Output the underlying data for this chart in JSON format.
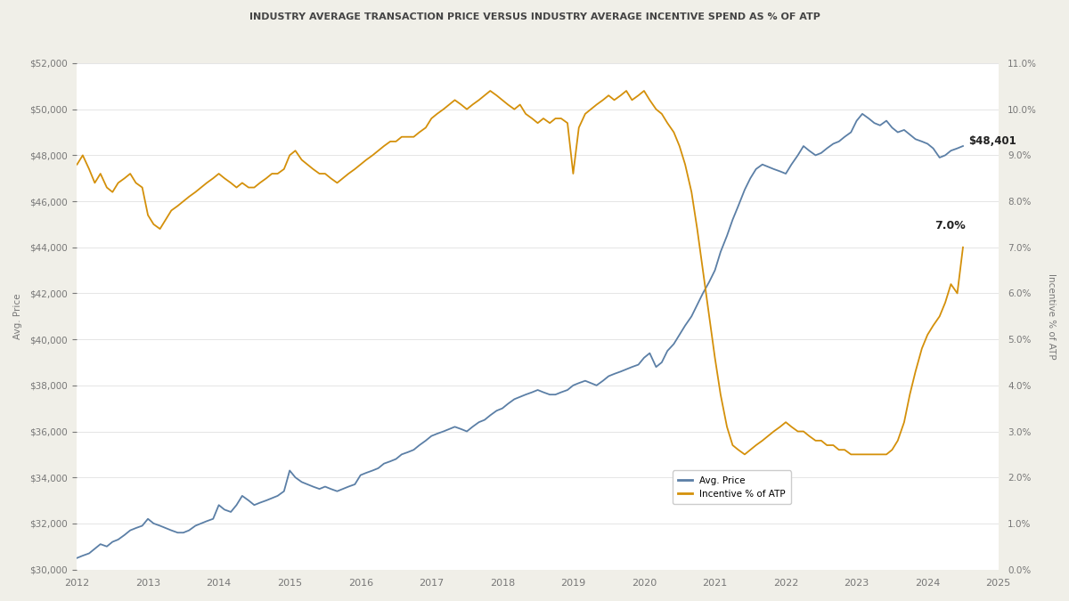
{
  "title": "INDUSTRY AVERAGE TRANSACTION PRICE VERSUS INDUSTRY AVERAGE INCENTIVE SPEND AS % OF ATP",
  "title_fontsize": 8.0,
  "ylabel_left": "Avg. Price",
  "ylabel_right": "Incentive % of ATP",
  "background_color": "#f0efe8",
  "plot_bg_color": "#ffffff",
  "price_color": "#5b7fa6",
  "incentive_color": "#d4900a",
  "price_label": "Avg. Price",
  "incentive_label": "Incentive % of ATP",
  "annotation_price": "$48,401",
  "annotation_incentive": "7.0%",
  "ylim_left": [
    30000,
    52000
  ],
  "ylim_right": [
    0.0,
    0.11
  ],
  "xlim": [
    2012.0,
    2025.0
  ],
  "price_data": [
    [
      2012.0,
      30500
    ],
    [
      2012.08,
      30600
    ],
    [
      2012.17,
      30700
    ],
    [
      2012.25,
      30900
    ],
    [
      2012.33,
      31100
    ],
    [
      2012.42,
      31000
    ],
    [
      2012.5,
      31200
    ],
    [
      2012.58,
      31300
    ],
    [
      2012.67,
      31500
    ],
    [
      2012.75,
      31700
    ],
    [
      2012.83,
      31800
    ],
    [
      2012.92,
      31900
    ],
    [
      2013.0,
      32200
    ],
    [
      2013.08,
      32000
    ],
    [
      2013.17,
      31900
    ],
    [
      2013.25,
      31800
    ],
    [
      2013.33,
      31700
    ],
    [
      2013.42,
      31600
    ],
    [
      2013.5,
      31600
    ],
    [
      2013.58,
      31700
    ],
    [
      2013.67,
      31900
    ],
    [
      2013.75,
      32000
    ],
    [
      2013.83,
      32100
    ],
    [
      2013.92,
      32200
    ],
    [
      2014.0,
      32800
    ],
    [
      2014.08,
      32600
    ],
    [
      2014.17,
      32500
    ],
    [
      2014.25,
      32800
    ],
    [
      2014.33,
      33200
    ],
    [
      2014.42,
      33000
    ],
    [
      2014.5,
      32800
    ],
    [
      2014.58,
      32900
    ],
    [
      2014.67,
      33000
    ],
    [
      2014.75,
      33100
    ],
    [
      2014.83,
      33200
    ],
    [
      2014.92,
      33400
    ],
    [
      2015.0,
      34300
    ],
    [
      2015.08,
      34000
    ],
    [
      2015.17,
      33800
    ],
    [
      2015.25,
      33700
    ],
    [
      2015.33,
      33600
    ],
    [
      2015.42,
      33500
    ],
    [
      2015.5,
      33600
    ],
    [
      2015.58,
      33500
    ],
    [
      2015.67,
      33400
    ],
    [
      2015.75,
      33500
    ],
    [
      2015.83,
      33600
    ],
    [
      2015.92,
      33700
    ],
    [
      2016.0,
      34100
    ],
    [
      2016.08,
      34200
    ],
    [
      2016.17,
      34300
    ],
    [
      2016.25,
      34400
    ],
    [
      2016.33,
      34600
    ],
    [
      2016.42,
      34700
    ],
    [
      2016.5,
      34800
    ],
    [
      2016.58,
      35000
    ],
    [
      2016.67,
      35100
    ],
    [
      2016.75,
      35200
    ],
    [
      2016.83,
      35400
    ],
    [
      2016.92,
      35600
    ],
    [
      2017.0,
      35800
    ],
    [
      2017.08,
      35900
    ],
    [
      2017.17,
      36000
    ],
    [
      2017.25,
      36100
    ],
    [
      2017.33,
      36200
    ],
    [
      2017.42,
      36100
    ],
    [
      2017.5,
      36000
    ],
    [
      2017.58,
      36200
    ],
    [
      2017.67,
      36400
    ],
    [
      2017.75,
      36500
    ],
    [
      2017.83,
      36700
    ],
    [
      2017.92,
      36900
    ],
    [
      2018.0,
      37000
    ],
    [
      2018.08,
      37200
    ],
    [
      2018.17,
      37400
    ],
    [
      2018.25,
      37500
    ],
    [
      2018.33,
      37600
    ],
    [
      2018.42,
      37700
    ],
    [
      2018.5,
      37800
    ],
    [
      2018.58,
      37700
    ],
    [
      2018.67,
      37600
    ],
    [
      2018.75,
      37600
    ],
    [
      2018.83,
      37700
    ],
    [
      2018.92,
      37800
    ],
    [
      2019.0,
      38000
    ],
    [
      2019.08,
      38100
    ],
    [
      2019.17,
      38200
    ],
    [
      2019.25,
      38100
    ],
    [
      2019.33,
      38000
    ],
    [
      2019.42,
      38200
    ],
    [
      2019.5,
      38400
    ],
    [
      2019.58,
      38500
    ],
    [
      2019.67,
      38600
    ],
    [
      2019.75,
      38700
    ],
    [
      2019.83,
      38800
    ],
    [
      2019.92,
      38900
    ],
    [
      2020.0,
      39200
    ],
    [
      2020.08,
      39400
    ],
    [
      2020.17,
      38800
    ],
    [
      2020.25,
      39000
    ],
    [
      2020.33,
      39500
    ],
    [
      2020.42,
      39800
    ],
    [
      2020.5,
      40200
    ],
    [
      2020.58,
      40600
    ],
    [
      2020.67,
      41000
    ],
    [
      2020.75,
      41500
    ],
    [
      2020.83,
      42000
    ],
    [
      2020.92,
      42500
    ],
    [
      2021.0,
      43000
    ],
    [
      2021.08,
      43800
    ],
    [
      2021.17,
      44500
    ],
    [
      2021.25,
      45200
    ],
    [
      2021.33,
      45800
    ],
    [
      2021.42,
      46500
    ],
    [
      2021.5,
      47000
    ],
    [
      2021.58,
      47400
    ],
    [
      2021.67,
      47600
    ],
    [
      2021.75,
      47500
    ],
    [
      2021.83,
      47400
    ],
    [
      2021.92,
      47300
    ],
    [
      2022.0,
      47200
    ],
    [
      2022.08,
      47600
    ],
    [
      2022.17,
      48000
    ],
    [
      2022.25,
      48400
    ],
    [
      2022.33,
      48200
    ],
    [
      2022.42,
      48000
    ],
    [
      2022.5,
      48100
    ],
    [
      2022.58,
      48300
    ],
    [
      2022.67,
      48500
    ],
    [
      2022.75,
      48600
    ],
    [
      2022.83,
      48800
    ],
    [
      2022.92,
      49000
    ],
    [
      2023.0,
      49500
    ],
    [
      2023.08,
      49800
    ],
    [
      2023.17,
      49600
    ],
    [
      2023.25,
      49400
    ],
    [
      2023.33,
      49300
    ],
    [
      2023.42,
      49500
    ],
    [
      2023.5,
      49200
    ],
    [
      2023.58,
      49000
    ],
    [
      2023.67,
      49100
    ],
    [
      2023.75,
      48900
    ],
    [
      2023.83,
      48700
    ],
    [
      2023.92,
      48600
    ],
    [
      2024.0,
      48500
    ],
    [
      2024.08,
      48300
    ],
    [
      2024.17,
      47900
    ],
    [
      2024.25,
      48000
    ],
    [
      2024.33,
      48200
    ],
    [
      2024.42,
      48300
    ],
    [
      2024.5,
      48401
    ]
  ],
  "incentive_data": [
    [
      2012.0,
      0.088
    ],
    [
      2012.08,
      0.09
    ],
    [
      2012.17,
      0.087
    ],
    [
      2012.25,
      0.084
    ],
    [
      2012.33,
      0.086
    ],
    [
      2012.42,
      0.083
    ],
    [
      2012.5,
      0.082
    ],
    [
      2012.58,
      0.084
    ],
    [
      2012.67,
      0.085
    ],
    [
      2012.75,
      0.086
    ],
    [
      2012.83,
      0.084
    ],
    [
      2012.92,
      0.083
    ],
    [
      2013.0,
      0.077
    ],
    [
      2013.08,
      0.075
    ],
    [
      2013.17,
      0.074
    ],
    [
      2013.25,
      0.076
    ],
    [
      2013.33,
      0.078
    ],
    [
      2013.42,
      0.079
    ],
    [
      2013.5,
      0.08
    ],
    [
      2013.58,
      0.081
    ],
    [
      2013.67,
      0.082
    ],
    [
      2013.75,
      0.083
    ],
    [
      2013.83,
      0.084
    ],
    [
      2013.92,
      0.085
    ],
    [
      2014.0,
      0.086
    ],
    [
      2014.08,
      0.085
    ],
    [
      2014.17,
      0.084
    ],
    [
      2014.25,
      0.083
    ],
    [
      2014.33,
      0.084
    ],
    [
      2014.42,
      0.083
    ],
    [
      2014.5,
      0.083
    ],
    [
      2014.58,
      0.084
    ],
    [
      2014.67,
      0.085
    ],
    [
      2014.75,
      0.086
    ],
    [
      2014.83,
      0.086
    ],
    [
      2014.92,
      0.087
    ],
    [
      2015.0,
      0.09
    ],
    [
      2015.08,
      0.091
    ],
    [
      2015.17,
      0.089
    ],
    [
      2015.25,
      0.088
    ],
    [
      2015.33,
      0.087
    ],
    [
      2015.42,
      0.086
    ],
    [
      2015.5,
      0.086
    ],
    [
      2015.58,
      0.085
    ],
    [
      2015.67,
      0.084
    ],
    [
      2015.75,
      0.085
    ],
    [
      2015.83,
      0.086
    ],
    [
      2015.92,
      0.087
    ],
    [
      2016.0,
      0.088
    ],
    [
      2016.08,
      0.089
    ],
    [
      2016.17,
      0.09
    ],
    [
      2016.25,
      0.091
    ],
    [
      2016.33,
      0.092
    ],
    [
      2016.42,
      0.093
    ],
    [
      2016.5,
      0.093
    ],
    [
      2016.58,
      0.094
    ],
    [
      2016.67,
      0.094
    ],
    [
      2016.75,
      0.094
    ],
    [
      2016.83,
      0.095
    ],
    [
      2016.92,
      0.096
    ],
    [
      2017.0,
      0.098
    ],
    [
      2017.08,
      0.099
    ],
    [
      2017.17,
      0.1
    ],
    [
      2017.25,
      0.101
    ],
    [
      2017.33,
      0.102
    ],
    [
      2017.42,
      0.101
    ],
    [
      2017.5,
      0.1
    ],
    [
      2017.58,
      0.101
    ],
    [
      2017.67,
      0.102
    ],
    [
      2017.75,
      0.103
    ],
    [
      2017.83,
      0.104
    ],
    [
      2017.92,
      0.103
    ],
    [
      2018.0,
      0.102
    ],
    [
      2018.08,
      0.101
    ],
    [
      2018.17,
      0.1
    ],
    [
      2018.25,
      0.101
    ],
    [
      2018.33,
      0.099
    ],
    [
      2018.42,
      0.098
    ],
    [
      2018.5,
      0.097
    ],
    [
      2018.58,
      0.098
    ],
    [
      2018.67,
      0.097
    ],
    [
      2018.75,
      0.098
    ],
    [
      2018.83,
      0.098
    ],
    [
      2018.92,
      0.097
    ],
    [
      2019.0,
      0.086
    ],
    [
      2019.08,
      0.096
    ],
    [
      2019.17,
      0.099
    ],
    [
      2019.25,
      0.1
    ],
    [
      2019.33,
      0.101
    ],
    [
      2019.42,
      0.102
    ],
    [
      2019.5,
      0.103
    ],
    [
      2019.58,
      0.102
    ],
    [
      2019.67,
      0.103
    ],
    [
      2019.75,
      0.104
    ],
    [
      2019.83,
      0.102
    ],
    [
      2019.92,
      0.103
    ],
    [
      2020.0,
      0.104
    ],
    [
      2020.08,
      0.102
    ],
    [
      2020.17,
      0.1
    ],
    [
      2020.25,
      0.099
    ],
    [
      2020.33,
      0.097
    ],
    [
      2020.42,
      0.095
    ],
    [
      2020.5,
      0.092
    ],
    [
      2020.58,
      0.088
    ],
    [
      2020.67,
      0.082
    ],
    [
      2020.75,
      0.074
    ],
    [
      2020.83,
      0.065
    ],
    [
      2020.92,
      0.055
    ],
    [
      2021.0,
      0.046
    ],
    [
      2021.08,
      0.038
    ],
    [
      2021.17,
      0.031
    ],
    [
      2021.25,
      0.027
    ],
    [
      2021.33,
      0.026
    ],
    [
      2021.42,
      0.025
    ],
    [
      2021.5,
      0.026
    ],
    [
      2021.58,
      0.027
    ],
    [
      2021.67,
      0.028
    ],
    [
      2021.75,
      0.029
    ],
    [
      2021.83,
      0.03
    ],
    [
      2021.92,
      0.031
    ],
    [
      2022.0,
      0.032
    ],
    [
      2022.08,
      0.031
    ],
    [
      2022.17,
      0.03
    ],
    [
      2022.25,
      0.03
    ],
    [
      2022.33,
      0.029
    ],
    [
      2022.42,
      0.028
    ],
    [
      2022.5,
      0.028
    ],
    [
      2022.58,
      0.027
    ],
    [
      2022.67,
      0.027
    ],
    [
      2022.75,
      0.026
    ],
    [
      2022.83,
      0.026
    ],
    [
      2022.92,
      0.025
    ],
    [
      2023.0,
      0.025
    ],
    [
      2023.08,
      0.025
    ],
    [
      2023.17,
      0.025
    ],
    [
      2023.25,
      0.025
    ],
    [
      2023.33,
      0.025
    ],
    [
      2023.42,
      0.025
    ],
    [
      2023.5,
      0.026
    ],
    [
      2023.58,
      0.028
    ],
    [
      2023.67,
      0.032
    ],
    [
      2023.75,
      0.038
    ],
    [
      2023.83,
      0.043
    ],
    [
      2023.92,
      0.048
    ],
    [
      2024.0,
      0.051
    ],
    [
      2024.08,
      0.053
    ],
    [
      2024.17,
      0.055
    ],
    [
      2024.25,
      0.058
    ],
    [
      2024.33,
      0.062
    ],
    [
      2024.42,
      0.06
    ],
    [
      2024.5,
      0.07
    ]
  ]
}
